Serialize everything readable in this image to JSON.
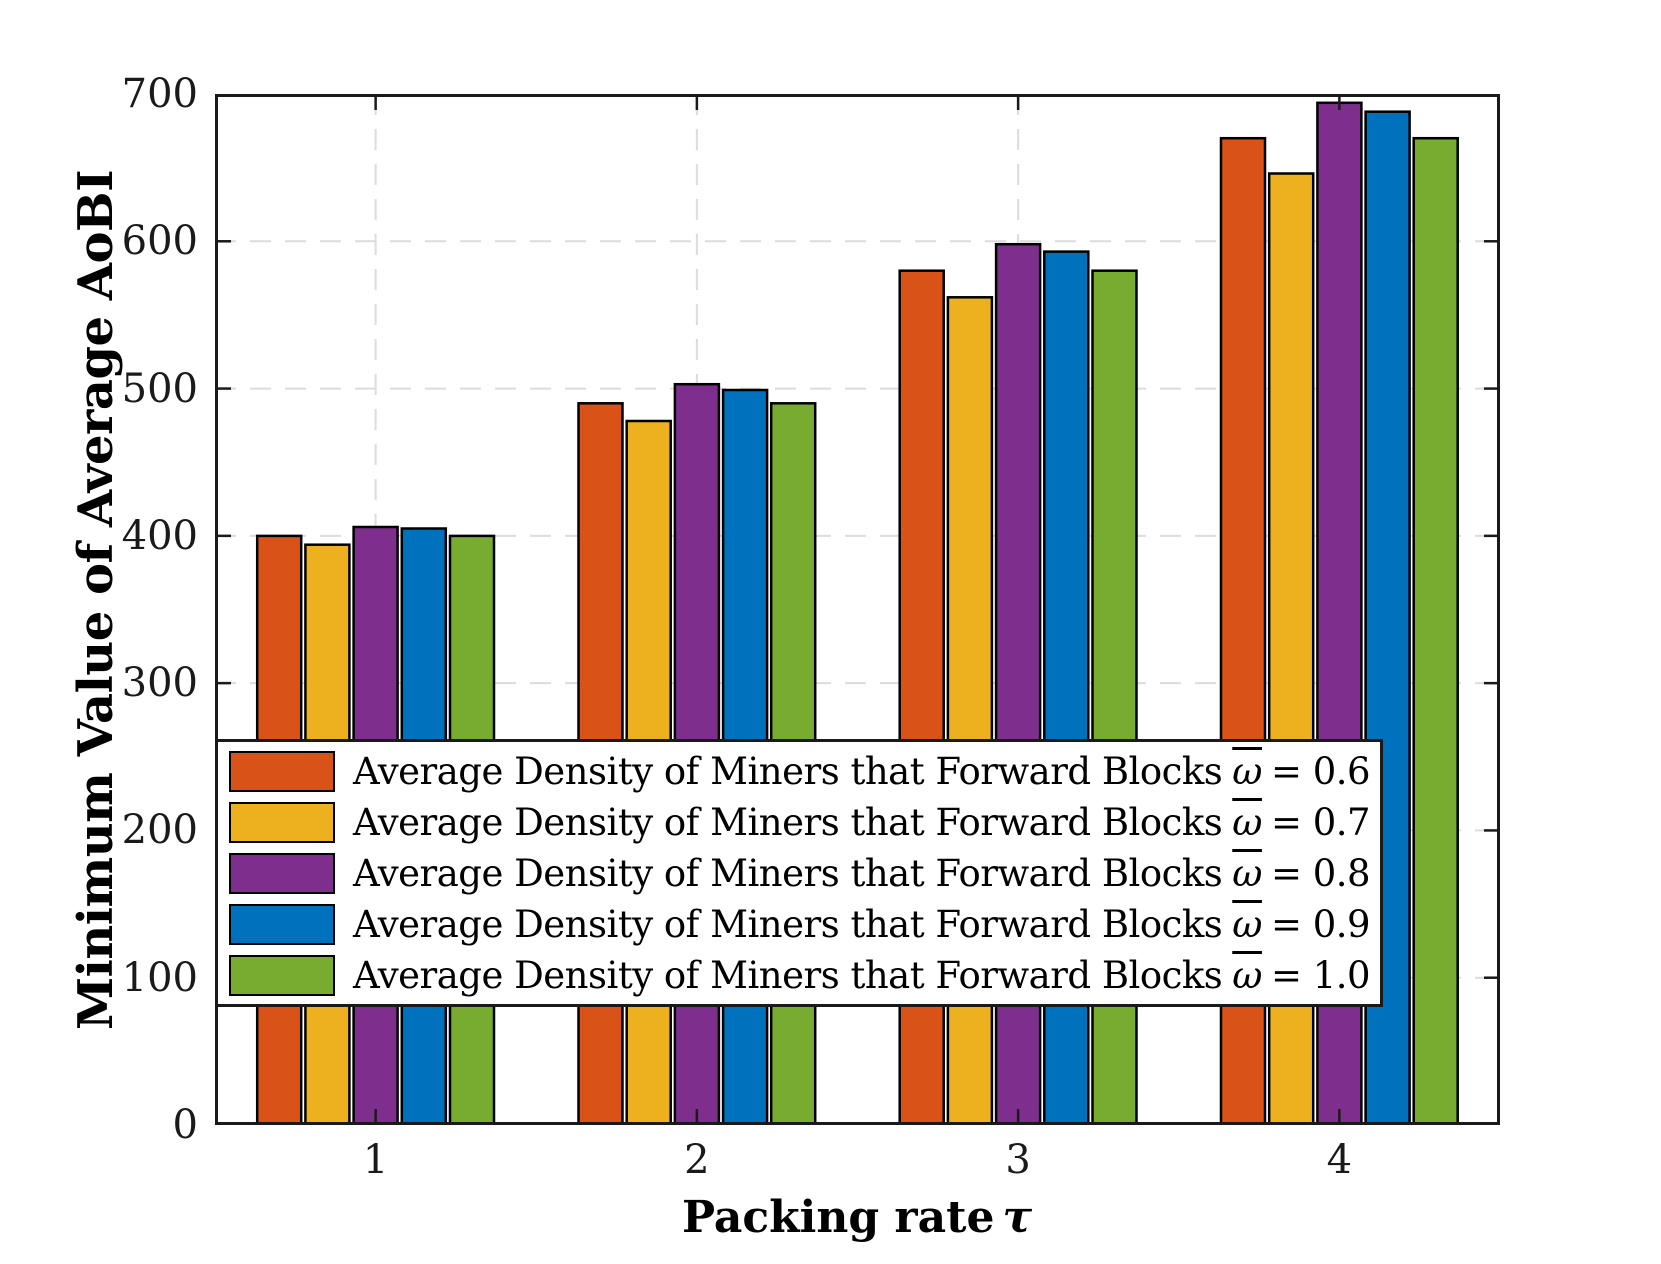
{
  "figure": {
    "background": "#ffffff",
    "axis_color": "#1a1a1a",
    "grid_color": "#dcdcdc",
    "bar_edge_color": "#000000"
  },
  "chart_data": {
    "type": "bar",
    "title": "",
    "xlabel": "Packing rate τ",
    "ylabel": "Minimum Value of Average AoBI",
    "categories": [
      1,
      2,
      3,
      4
    ],
    "x_tick_labels": [
      "1",
      "2",
      "3",
      "4"
    ],
    "y_ticks": [
      0,
      100,
      200,
      300,
      400,
      500,
      600,
      700
    ],
    "ylim": [
      0,
      700
    ],
    "grid": "both-dashed",
    "legend_position": "inside-lower-left",
    "series": [
      {
        "name": "Average Density of Miners that Forward Blocks ω̄ = 0.6",
        "color": "#D95319",
        "values": [
          400,
          490,
          580,
          670
        ]
      },
      {
        "name": "Average Density of Miners that Forward Blocks ω̄ = 0.7",
        "color": "#EDB120",
        "values": [
          394,
          478,
          562,
          646
        ]
      },
      {
        "name": "Average Density of Miners that Forward Blocks ω̄ = 0.8",
        "color": "#7E2F8E",
        "values": [
          406,
          503,
          598,
          694
        ]
      },
      {
        "name": "Average Density of Miners that Forward Blocks ω̄ = 0.9",
        "color": "#0072BD",
        "values": [
          405,
          499,
          593,
          688
        ]
      },
      {
        "name": "Average Density of Miners that Forward Blocks ω̄ = 1.0",
        "color": "#77AC30",
        "values": [
          400,
          490,
          580,
          670
        ]
      }
    ]
  },
  "axes": {
    "ylabel": "Minimum Value of Average AoBI",
    "xlabel": "Packing rate",
    "xlabel_symbol": "τ"
  },
  "legend": {
    "symbol": "ω",
    "items": [
      {
        "label": "Average Density of Miners that Forward Blocks",
        "value": "= 0.6",
        "color": "#D95319"
      },
      {
        "label": "Average Density of Miners that Forward Blocks",
        "value": "= 0.7",
        "color": "#EDB120"
      },
      {
        "label": "Average Density of Miners that Forward Blocks",
        "value": "= 0.8",
        "color": "#7E2F8E"
      },
      {
        "label": "Average Density of Miners that Forward Blocks",
        "value": "= 0.9",
        "color": "#0072BD"
      },
      {
        "label": "Average Density of Miners that Forward Blocks",
        "value": "= 1.0",
        "color": "#77AC30"
      }
    ]
  }
}
